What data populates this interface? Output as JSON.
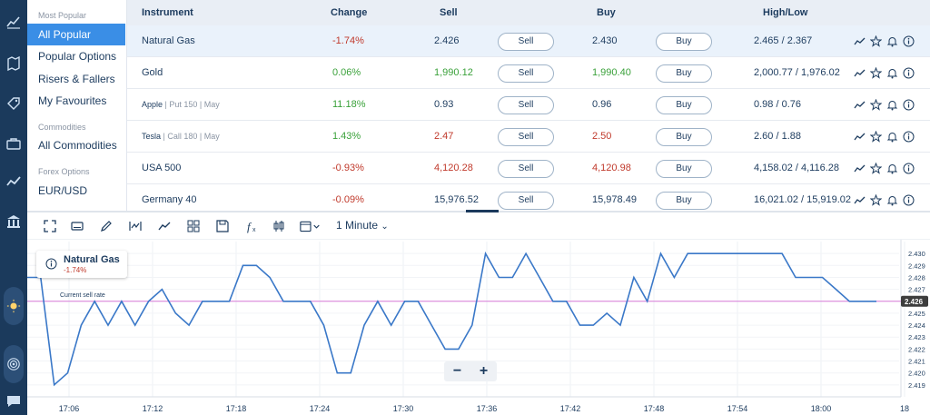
{
  "sidebar": {
    "sections": [
      {
        "heading": "Most Popular",
        "items": [
          "All Popular",
          "Popular Options",
          "Risers & Fallers",
          "My Favourites"
        ]
      },
      {
        "heading": "Commodities",
        "items": [
          "All Commodities"
        ]
      },
      {
        "heading": "Forex Options",
        "items": [
          "EUR/USD"
        ]
      }
    ],
    "active_item": "All Popular"
  },
  "table": {
    "headers": {
      "instrument": "Instrument",
      "change": "Change",
      "sell": "Sell",
      "buy": "Buy",
      "highlow": "High/Low"
    },
    "sell_button": "Sell",
    "buy_button": "Buy",
    "rows": [
      {
        "name": "Natural Gas",
        "sub": "",
        "change": "-1.74%",
        "sell": "2.426",
        "buy": "2.430",
        "highlow": "2.465 / 2.367"
      },
      {
        "name": "Gold",
        "sub": "",
        "change": "0.06%",
        "sell": "1,990.12",
        "buy": "1,990.40",
        "highlow": "2,000.77 / 1,976.02"
      },
      {
        "name": "Apple",
        "sub": " | Put 150 | May",
        "change": "11.18%",
        "sell": "0.93",
        "buy": "0.96",
        "highlow": "0.98 / 0.76"
      },
      {
        "name": "Tesla",
        "sub": " | Call 180 | May",
        "change": "1.43%",
        "sell": "2.47",
        "buy": "2.50",
        "highlow": "2.60 / 1.88"
      },
      {
        "name": "USA 500",
        "sub": "",
        "change": "-0.93%",
        "sell": "4,120.28",
        "buy": "4,120.98",
        "highlow": "4,158.02 / 4,116.28"
      },
      {
        "name": "Germany 40",
        "sub": "",
        "change": "-0.09%",
        "sell": "15,976.52",
        "buy": "15,978.49",
        "highlow": "16,021.02 / 15,919.02"
      }
    ]
  },
  "colors": {
    "positive": "#3aa13a",
    "negative": "#c0392b",
    "line": "#3a78c8",
    "sell_rate": "#d77ad7",
    "accent": "#3a8ee6",
    "rail": "#1b3a5c"
  },
  "chart_toolbar": {
    "interval": "1 Minute"
  },
  "chart": {
    "instrument": "Natural Gas",
    "change": "-1.74%",
    "current_sell_label": "Current sell rate",
    "current_price_tag": "2.426"
  },
  "chart_data": {
    "type": "line",
    "x_ticks": [
      "17:06",
      "17:12",
      "17:18",
      "17:24",
      "17:30",
      "17:36",
      "17:42",
      "17:48",
      "17:54",
      "18:00",
      "18"
    ],
    "y_ticks": [
      "2.419",
      "2.420",
      "2.421",
      "2.422",
      "2.423",
      "2.424",
      "2.425",
      "2.426",
      "2.427",
      "2.428",
      "2.429",
      "2.430"
    ],
    "ylim": [
      2.418,
      2.431
    ],
    "series": [
      {
        "values": [
          2.428,
          2.428,
          2.419,
          2.42,
          2.424,
          2.426,
          2.424,
          2.426,
          2.424,
          2.426,
          2.427,
          2.425,
          2.424,
          2.426,
          2.426,
          2.426,
          2.429,
          2.429,
          2.428,
          2.426,
          2.426,
          2.426,
          2.424,
          2.42,
          2.42,
          2.424,
          2.426,
          2.424,
          2.426,
          2.426,
          2.424,
          2.422,
          2.422,
          2.424,
          2.43,
          2.428,
          2.428,
          2.43,
          2.428,
          2.426,
          2.426,
          2.424,
          2.424,
          2.425,
          2.424,
          2.428,
          2.426,
          2.43,
          2.428,
          2.43,
          2.43,
          2.43,
          2.43,
          2.43,
          2.43,
          2.43,
          2.43,
          2.428,
          2.428,
          2.428,
          2.427,
          2.426,
          2.426,
          2.426
        ]
      }
    ],
    "reference_line": 2.426
  }
}
